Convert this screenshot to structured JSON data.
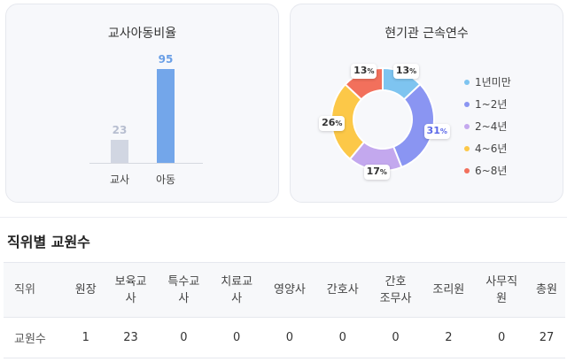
{
  "ratio_card": {
    "title": "교사아동비율",
    "chart_data": {
      "type": "bar",
      "categories": [
        "교사",
        "아동"
      ],
      "values": [
        23,
        95
      ],
      "colors": [
        "#d1d6e2",
        "#73a6ea"
      ],
      "label_colors": [
        "#b7bed0",
        "#6a9fe6"
      ]
    }
  },
  "tenure_card": {
    "title": "현기관 근속연수",
    "chart_data": {
      "type": "pie",
      "categories": [
        "1년미만",
        "1~2년",
        "2~4년",
        "4~6년",
        "6~8년"
      ],
      "values": [
        13,
        31,
        17,
        26,
        13
      ],
      "unit": "%",
      "colors": [
        "#7ec4f0",
        "#8a95f2",
        "#c3a8ee",
        "#fcc848",
        "#f2705c"
      ]
    }
  },
  "staff_section": {
    "title": "직위별 교원수",
    "headers": [
      "직위",
      "원장",
      "보육교\n사",
      "특수교\n사",
      "치료교\n사",
      "영양사",
      "간호사",
      "간호\n조무사",
      "조리원",
      "사무직\n원",
      "총원"
    ],
    "rows": [
      [
        "교원수",
        "1",
        "23",
        "0",
        "0",
        "0",
        "0",
        "0",
        "2",
        "0",
        "27"
      ]
    ]
  }
}
